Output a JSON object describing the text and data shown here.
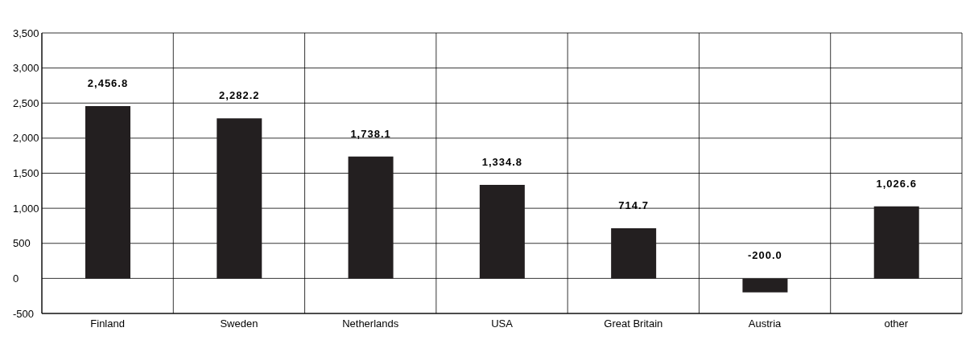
{
  "chart_data": {
    "type": "bar",
    "categories": [
      "Finland",
      "Sweden",
      "Netherlands",
      "USA",
      "Great Britain",
      "Austria",
      "other"
    ],
    "values": [
      2456.8,
      2282.2,
      1738.1,
      1334.8,
      714.7,
      -200.0,
      1026.6
    ],
    "value_labels": [
      "2,456.8",
      "2,282.2",
      "1,738.1",
      "1,334.8",
      "714.7",
      "-200.0",
      "1,026.6"
    ],
    "color": "#231f20",
    "ylim": [
      -500,
      3500
    ],
    "yticks": [
      {
        "value": -500,
        "label": "-500"
      },
      {
        "value": 0,
        "label": "0"
      },
      {
        "value": 500,
        "label": "500"
      },
      {
        "value": 1000,
        "label": "1,000"
      },
      {
        "value": 1500,
        "label": "1,500"
      },
      {
        "value": 2000,
        "label": "2,000"
      },
      {
        "value": 2500,
        "label": "2,500"
      },
      {
        "value": 3000,
        "label": "3,000"
      },
      {
        "value": 3500,
        "label": "3,500"
      }
    ],
    "grid": true
  }
}
